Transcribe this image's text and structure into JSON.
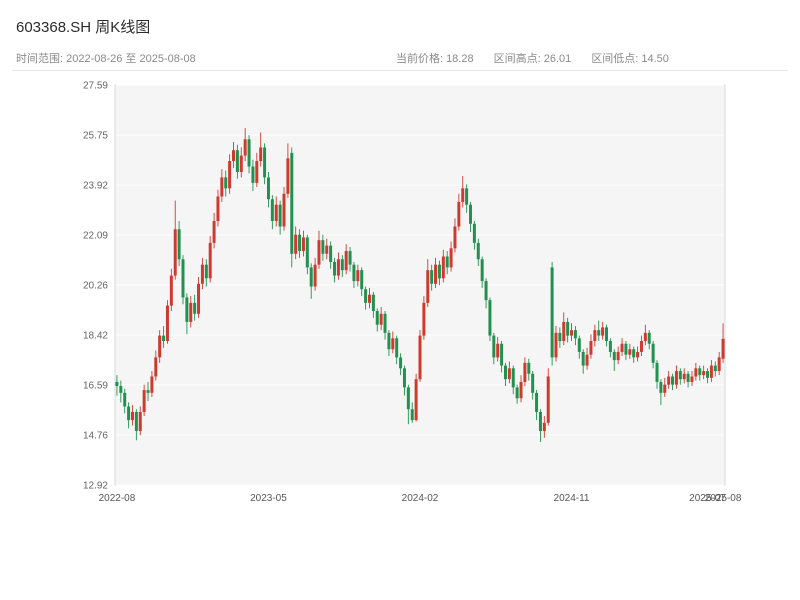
{
  "header": {
    "title": "603368.SH 周K线图",
    "range_label": "时间范围: 2022-08-26 至 2025-08-08"
  },
  "stats": {
    "current_label": "当前价格:",
    "current_value": "18.28",
    "high_label": "区间高点:",
    "high_value": "26.01",
    "low_label": "区间低点:",
    "low_value": "14.50"
  },
  "chart_data": {
    "type": "candlestick",
    "title": "603368.SH 周K线图",
    "period": "weekly",
    "x_start": "2022-08-26",
    "x_end": "2025-08-08",
    "current_price": 18.28,
    "range_high": 26.01,
    "range_low": 14.5,
    "ylim": [
      12.92,
      27.59
    ],
    "y_ticks": [
      "12.92",
      "14.76",
      "16.59",
      "18.42",
      "20.26",
      "22.09",
      "23.92",
      "25.75",
      "27.59"
    ],
    "x_ticks": [
      {
        "index": 0,
        "label": "2022-08"
      },
      {
        "index": 39,
        "label": "2023-05"
      },
      {
        "index": 78,
        "label": "2024-02"
      },
      {
        "index": 117,
        "label": "2024-11"
      },
      {
        "index": 152,
        "label": "2025-07"
      },
      {
        "index": 156,
        "label": "2025-08"
      }
    ],
    "up_color": "#cf3a2e",
    "down_color": "#22914f",
    "plot_bg": "#f5f5f6",
    "frame_color": "#d9d9d9",
    "grid_color": "#ffffff",
    "candles": [
      [
        16.7,
        16.95,
        16.2,
        16.55
      ],
      [
        16.55,
        16.75,
        15.95,
        16.3
      ],
      [
        16.3,
        16.45,
        15.55,
        15.8
      ],
      [
        15.8,
        15.95,
        15.0,
        15.3
      ],
      [
        15.3,
        15.85,
        15.1,
        15.6
      ],
      [
        15.6,
        15.7,
        14.56,
        14.9
      ],
      [
        14.9,
        15.8,
        14.75,
        15.6
      ],
      [
        15.6,
        16.6,
        15.45,
        16.4
      ],
      [
        16.4,
        16.7,
        16.0,
        16.3
      ],
      [
        16.3,
        17.1,
        16.15,
        16.9
      ],
      [
        16.9,
        17.85,
        16.75,
        17.6
      ],
      [
        17.6,
        18.6,
        17.4,
        18.4
      ],
      [
        18.4,
        18.75,
        17.95,
        18.2
      ],
      [
        18.2,
        19.7,
        18.1,
        19.5
      ],
      [
        19.5,
        20.85,
        19.3,
        20.6
      ],
      [
        20.6,
        23.35,
        20.45,
        22.3
      ],
      [
        22.3,
        22.6,
        20.95,
        21.2
      ],
      [
        21.2,
        21.35,
        19.55,
        19.8
      ],
      [
        19.8,
        19.95,
        18.45,
        18.9
      ],
      [
        18.9,
        19.85,
        18.7,
        19.6
      ],
      [
        19.6,
        19.9,
        18.95,
        19.2
      ],
      [
        19.2,
        20.55,
        19.05,
        20.3
      ],
      [
        20.3,
        21.25,
        20.1,
        21.0
      ],
      [
        21.0,
        21.2,
        20.2,
        20.5
      ],
      [
        20.5,
        22.05,
        20.35,
        21.8
      ],
      [
        21.8,
        22.9,
        21.6,
        22.6
      ],
      [
        22.6,
        23.75,
        22.4,
        23.5
      ],
      [
        23.5,
        24.5,
        23.3,
        24.2
      ],
      [
        24.2,
        24.45,
        23.5,
        23.8
      ],
      [
        23.8,
        25.05,
        23.6,
        24.8
      ],
      [
        24.8,
        25.5,
        24.55,
        25.2
      ],
      [
        25.2,
        25.4,
        24.15,
        24.4
      ],
      [
        24.4,
        25.3,
        24.2,
        25.0
      ],
      [
        25.0,
        26.01,
        24.8,
        25.6
      ],
      [
        25.6,
        25.75,
        24.35,
        24.6
      ],
      [
        24.6,
        24.85,
        23.7,
        24.0
      ],
      [
        24.0,
        25.1,
        23.85,
        24.8
      ],
      [
        24.8,
        25.85,
        24.6,
        25.3
      ],
      [
        25.3,
        25.45,
        23.95,
        24.2
      ],
      [
        24.2,
        24.4,
        23.1,
        23.4
      ],
      [
        23.4,
        23.55,
        22.3,
        22.6
      ],
      [
        22.6,
        23.5,
        22.4,
        23.2
      ],
      [
        23.2,
        23.35,
        22.1,
        22.4
      ],
      [
        22.4,
        23.85,
        22.25,
        23.6
      ],
      [
        23.6,
        25.45,
        23.45,
        24.9
      ],
      [
        25.1,
        25.3,
        20.9,
        21.4
      ],
      [
        21.4,
        22.4,
        21.2,
        22.1
      ],
      [
        22.1,
        22.3,
        21.25,
        21.5
      ],
      [
        21.5,
        22.25,
        21.3,
        22.0
      ],
      [
        22.0,
        22.1,
        20.65,
        20.9
      ],
      [
        20.9,
        21.05,
        19.75,
        20.2
      ],
      [
        20.2,
        21.25,
        20.05,
        21.0
      ],
      [
        21.0,
        22.25,
        20.85,
        21.9
      ],
      [
        21.9,
        22.1,
        21.15,
        21.4
      ],
      [
        21.4,
        21.95,
        21.2,
        21.7
      ],
      [
        21.7,
        21.85,
        20.85,
        21.1
      ],
      [
        21.1,
        21.25,
        20.35,
        20.6
      ],
      [
        20.6,
        21.45,
        20.45,
        21.2
      ],
      [
        21.2,
        21.35,
        20.55,
        20.8
      ],
      [
        20.8,
        21.75,
        20.65,
        21.5
      ],
      [
        21.5,
        21.65,
        20.75,
        21.0
      ],
      [
        21.0,
        21.1,
        20.15,
        20.4
      ],
      [
        20.4,
        21.0,
        20.2,
        20.8
      ],
      [
        20.8,
        20.9,
        19.85,
        20.1
      ],
      [
        20.1,
        20.2,
        19.35,
        19.6
      ],
      [
        19.6,
        20.15,
        19.4,
        19.9
      ],
      [
        19.9,
        20.0,
        19.05,
        19.3
      ],
      [
        19.3,
        19.4,
        18.55,
        18.8
      ],
      [
        18.8,
        19.45,
        18.6,
        19.2
      ],
      [
        19.2,
        19.3,
        18.25,
        18.5
      ],
      [
        18.5,
        18.6,
        17.65,
        17.9
      ],
      [
        17.9,
        18.55,
        17.75,
        18.3
      ],
      [
        18.3,
        18.4,
        17.35,
        17.6
      ],
      [
        17.6,
        17.75,
        16.95,
        17.2
      ],
      [
        17.2,
        17.3,
        16.2,
        16.5
      ],
      [
        16.5,
        16.6,
        15.15,
        15.7
      ],
      [
        15.7,
        15.95,
        15.2,
        15.3
      ],
      [
        15.3,
        17.0,
        15.25,
        16.8
      ],
      [
        16.8,
        18.6,
        16.7,
        18.4
      ],
      [
        18.4,
        19.85,
        18.25,
        19.6
      ],
      [
        19.6,
        21.2,
        19.45,
        20.8
      ],
      [
        20.8,
        21.0,
        20.05,
        20.3
      ],
      [
        20.3,
        21.25,
        20.15,
        21.0
      ],
      [
        21.0,
        21.15,
        20.25,
        20.5
      ],
      [
        20.5,
        21.55,
        20.35,
        21.3
      ],
      [
        21.3,
        21.5,
        20.65,
        20.9
      ],
      [
        20.9,
        21.85,
        20.75,
        21.6
      ],
      [
        21.6,
        22.7,
        21.45,
        22.4
      ],
      [
        22.4,
        23.6,
        22.25,
        23.3
      ],
      [
        23.3,
        24.25,
        23.1,
        23.8
      ],
      [
        23.8,
        23.95,
        22.9,
        23.2
      ],
      [
        23.2,
        23.3,
        22.2,
        22.5
      ],
      [
        22.5,
        22.6,
        21.55,
        21.8
      ],
      [
        21.8,
        21.95,
        20.95,
        21.2
      ],
      [
        21.2,
        21.3,
        20.15,
        20.4
      ],
      [
        20.4,
        20.5,
        19.4,
        19.7
      ],
      [
        19.7,
        19.8,
        18.2,
        18.4
      ],
      [
        18.4,
        18.5,
        17.35,
        17.6
      ],
      [
        17.6,
        18.35,
        17.45,
        18.1
      ],
      [
        18.1,
        18.2,
        17.05,
        17.3
      ],
      [
        17.3,
        17.4,
        16.55,
        16.8
      ],
      [
        16.8,
        17.45,
        16.65,
        17.2
      ],
      [
        17.2,
        17.3,
        16.25,
        16.5
      ],
      [
        16.5,
        16.6,
        15.9,
        16.1
      ],
      [
        16.1,
        16.95,
        15.95,
        16.7
      ],
      [
        16.7,
        17.6,
        16.55,
        17.4
      ],
      [
        17.4,
        17.55,
        16.75,
        17.0
      ],
      [
        17.0,
        17.1,
        16.05,
        16.3
      ],
      [
        16.3,
        16.4,
        15.3,
        15.6
      ],
      [
        15.6,
        15.7,
        14.5,
        14.9
      ],
      [
        14.9,
        15.45,
        14.65,
        15.2
      ],
      [
        15.2,
        17.2,
        15.1,
        16.9
      ],
      [
        20.9,
        21.1,
        17.3,
        17.6
      ],
      [
        17.6,
        18.75,
        17.45,
        18.5
      ],
      [
        18.5,
        18.7,
        17.95,
        18.2
      ],
      [
        18.2,
        19.25,
        18.05,
        18.9
      ],
      [
        18.9,
        19.05,
        18.15,
        18.4
      ],
      [
        18.4,
        18.85,
        18.2,
        18.6
      ],
      [
        18.6,
        18.75,
        18.05,
        18.3
      ],
      [
        18.3,
        18.4,
        17.55,
        17.8
      ],
      [
        17.8,
        17.9,
        17.0,
        17.3
      ],
      [
        17.3,
        17.95,
        17.15,
        17.7
      ],
      [
        17.7,
        18.45,
        17.55,
        18.2
      ],
      [
        18.2,
        18.8,
        18.0,
        18.6
      ],
      [
        18.6,
        18.95,
        18.2,
        18.4
      ],
      [
        18.4,
        18.9,
        18.25,
        18.7
      ],
      [
        18.7,
        18.8,
        18.0,
        18.2
      ],
      [
        18.2,
        18.3,
        17.6,
        17.8
      ],
      [
        17.8,
        17.9,
        17.1,
        17.5
      ],
      [
        17.5,
        18.0,
        17.35,
        17.8
      ],
      [
        17.8,
        18.3,
        17.65,
        18.1
      ],
      [
        18.1,
        18.2,
        17.5,
        17.7
      ],
      [
        17.7,
        18.1,
        17.55,
        17.9
      ],
      [
        17.9,
        18.0,
        17.4,
        17.6
      ],
      [
        17.6,
        18.0,
        17.45,
        17.8
      ],
      [
        17.8,
        18.4,
        17.65,
        18.2
      ],
      [
        18.2,
        18.8,
        18.05,
        18.5
      ],
      [
        18.5,
        18.6,
        17.9,
        18.1
      ],
      [
        18.1,
        18.2,
        17.2,
        17.4
      ],
      [
        17.4,
        17.5,
        16.45,
        16.7
      ],
      [
        16.7,
        16.8,
        15.85,
        16.3
      ],
      [
        16.3,
        16.85,
        16.15,
        16.6
      ],
      [
        16.6,
        17.1,
        16.45,
        16.9
      ],
      [
        16.9,
        17.0,
        16.4,
        16.6
      ],
      [
        16.6,
        17.3,
        16.45,
        17.1
      ],
      [
        17.1,
        17.2,
        16.6,
        16.8
      ],
      [
        16.8,
        17.2,
        16.65,
        17.0
      ],
      [
        17.0,
        17.1,
        16.5,
        16.7
      ],
      [
        16.7,
        17.1,
        16.55,
        16.9
      ],
      [
        16.9,
        17.4,
        16.75,
        17.2
      ],
      [
        17.2,
        17.3,
        16.75,
        16.95
      ],
      [
        16.95,
        17.3,
        16.8,
        17.1
      ],
      [
        17.1,
        17.2,
        16.65,
        16.85
      ],
      [
        16.85,
        17.5,
        16.7,
        17.3
      ],
      [
        17.3,
        17.45,
        16.9,
        17.1
      ],
      [
        17.1,
        17.8,
        16.95,
        17.6
      ],
      [
        17.55,
        18.85,
        17.4,
        18.28
      ]
    ]
  }
}
